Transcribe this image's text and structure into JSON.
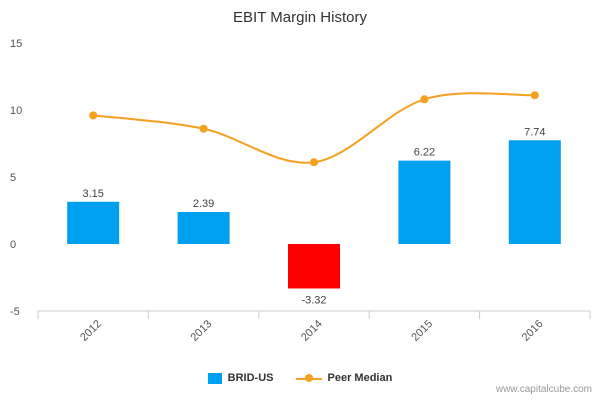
{
  "chart_data": {
    "type": "bar",
    "title": "EBIT Margin History",
    "categories": [
      "2012",
      "2013",
      "2014",
      "2015",
      "2016"
    ],
    "series": [
      {
        "name": "BRID-US",
        "kind": "bar",
        "values": [
          3.15,
          2.39,
          -3.32,
          6.22,
          7.74
        ],
        "labels": [
          "3.15",
          "2.39",
          "-3.32",
          "6.22",
          "7.74"
        ]
      },
      {
        "name": "Peer Median",
        "kind": "line",
        "values": [
          9.6,
          8.6,
          6.1,
          10.8,
          11.1
        ]
      }
    ],
    "ylim": [
      -5,
      15
    ],
    "yticks": [
      "15",
      "10",
      "5",
      "0",
      "-5"
    ],
    "xlabel": "",
    "ylabel": "",
    "legend_position": "bottom-center",
    "colors": {
      "bar": "#00a0f0",
      "bar_negative": "#ff0000",
      "line": "#f5a01e",
      "axis": "#cccccc"
    }
  },
  "watermark": "www.capitalcube.com"
}
